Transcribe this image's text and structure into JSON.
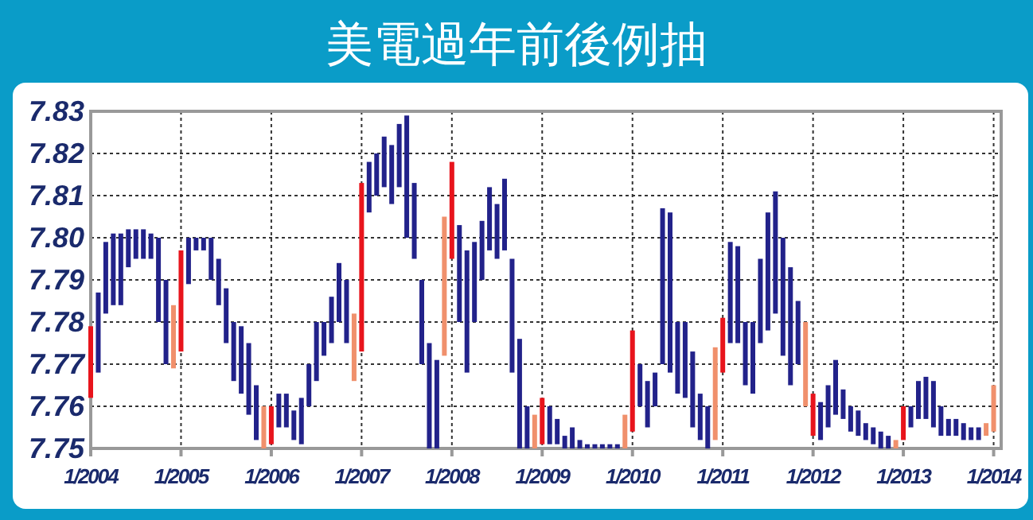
{
  "chart_data": {
    "type": "bar",
    "title": "美電過年前後例抽",
    "x": [
      "2004-01",
      "2004-02",
      "2004-03",
      "2004-04",
      "2004-05",
      "2004-06",
      "2004-07",
      "2004-08",
      "2004-09",
      "2004-10",
      "2004-11",
      "2004-12",
      "2005-01",
      "2005-02",
      "2005-03",
      "2005-04",
      "2005-05",
      "2005-06",
      "2005-07",
      "2005-08",
      "2005-09",
      "2005-10",
      "2005-11",
      "2005-12",
      "2006-01",
      "2006-02",
      "2006-03",
      "2006-04",
      "2006-05",
      "2006-06",
      "2006-07",
      "2006-08",
      "2006-09",
      "2006-10",
      "2006-11",
      "2006-12",
      "2007-01",
      "2007-02",
      "2007-03",
      "2007-04",
      "2007-05",
      "2007-06",
      "2007-07",
      "2007-08",
      "2007-09",
      "2007-10",
      "2007-11",
      "2007-12",
      "2008-01",
      "2008-02",
      "2008-03",
      "2008-04",
      "2008-05",
      "2008-06",
      "2008-07",
      "2008-08",
      "2008-09",
      "2008-10",
      "2008-11",
      "2008-12",
      "2009-01",
      "2009-02",
      "2009-03",
      "2009-04",
      "2009-05",
      "2009-06",
      "2009-07",
      "2009-08",
      "2009-09",
      "2009-10",
      "2009-11",
      "2009-12",
      "2010-01",
      "2010-02",
      "2010-03",
      "2010-04",
      "2010-05",
      "2010-06",
      "2010-07",
      "2010-08",
      "2010-09",
      "2010-10",
      "2010-11",
      "2010-12",
      "2011-01",
      "2011-02",
      "2011-03",
      "2011-04",
      "2011-05",
      "2011-06",
      "2011-07",
      "2011-08",
      "2011-09",
      "2011-10",
      "2011-11",
      "2011-12",
      "2012-01",
      "2012-02",
      "2012-03",
      "2012-04",
      "2012-05",
      "2012-06",
      "2012-07",
      "2012-08",
      "2012-09",
      "2012-10",
      "2012-11",
      "2012-12",
      "2013-01",
      "2013-02",
      "2013-03",
      "2013-04",
      "2013-05",
      "2013-06",
      "2013-07",
      "2013-08",
      "2013-09",
      "2013-10",
      "2013-11",
      "2013-12",
      "2014-01"
    ],
    "base": [
      7.762,
      7.768,
      7.782,
      7.784,
      7.784,
      7.793,
      7.795,
      7.795,
      7.795,
      7.78,
      7.77,
      7.769,
      7.773,
      7.789,
      7.797,
      7.797,
      7.79,
      7.784,
      7.775,
      7.766,
      7.763,
      7.758,
      7.752,
      7.75,
      7.751,
      7.755,
      7.755,
      7.752,
      7.751,
      7.76,
      7.766,
      7.772,
      7.775,
      7.78,
      7.775,
      7.766,
      7.773,
      7.806,
      7.81,
      7.812,
      7.808,
      7.812,
      7.8,
      7.795,
      7.77,
      7.75,
      7.75,
      7.772,
      7.795,
      7.78,
      7.768,
      7.78,
      7.79,
      7.797,
      7.795,
      7.797,
      7.768,
      7.75,
      7.75,
      7.75,
      7.751,
      7.751,
      7.751,
      7.75,
      7.75,
      7.75,
      7.75,
      7.75,
      7.75,
      7.75,
      7.75,
      7.75,
      7.754,
      7.76,
      7.755,
      7.76,
      7.77,
      7.768,
      7.763,
      7.762,
      7.755,
      7.752,
      7.75,
      7.752,
      7.768,
      7.775,
      7.775,
      7.765,
      7.763,
      7.775,
      7.778,
      7.782,
      7.772,
      7.765,
      7.77,
      7.76,
      7.753,
      7.752,
      7.755,
      7.758,
      7.757,
      7.754,
      7.753,
      7.752,
      7.751,
      7.75,
      7.75,
      7.75,
      7.752,
      7.755,
      7.757,
      7.757,
      7.755,
      7.753,
      7.753,
      7.753,
      7.752,
      7.752,
      7.752,
      7.753,
      7.754
    ],
    "values": [
      0.017,
      0.019,
      0.017,
      0.017,
      0.017,
      0.009,
      0.007,
      0.007,
      0.006,
      0.02,
      0.02,
      0.015,
      0.024,
      0.011,
      0.003,
      0.003,
      0.01,
      0.011,
      0.013,
      0.014,
      0.016,
      0.017,
      0.013,
      0.01,
      0.009,
      0.008,
      0.008,
      0.007,
      0.011,
      0.01,
      0.014,
      0.008,
      0.011,
      0.014,
      0.015,
      0.016,
      0.04,
      0.012,
      0.01,
      0.012,
      0.014,
      0.015,
      0.029,
      0.018,
      0.02,
      0.025,
      0.021,
      0.033,
      0.023,
      0.023,
      0.029,
      0.019,
      0.014,
      0.015,
      0.013,
      0.017,
      0.027,
      0.026,
      0.01,
      0.008,
      0.011,
      0.009,
      0.006,
      0.003,
      0.005,
      0.002,
      0.001,
      0.001,
      0.001,
      0.001,
      0.001,
      0.008,
      0.024,
      0.01,
      0.011,
      0.008,
      0.037,
      0.038,
      0.017,
      0.018,
      0.018,
      0.011,
      0.01,
      0.022,
      0.013,
      0.024,
      0.023,
      0.015,
      0.017,
      0.02,
      0.028,
      0.029,
      0.028,
      0.028,
      0.015,
      0.02,
      0.01,
      0.009,
      0.01,
      0.013,
      0.007,
      0.006,
      0.006,
      0.004,
      0.004,
      0.004,
      0.003,
      0.002,
      0.008,
      0.005,
      0.009,
      0.01,
      0.011,
      0.007,
      0.004,
      0.004,
      0.004,
      0.003,
      0.003,
      0.003,
      0.011
    ],
    "colors": [
      "#e8141c",
      "#22228a",
      "#22228a",
      "#22228a",
      "#22228a",
      "#22228a",
      "#22228a",
      "#22228a",
      "#22228a",
      "#22228a",
      "#22228a",
      "#f0906c",
      "#e8141c",
      "#22228a",
      "#22228a",
      "#22228a",
      "#22228a",
      "#22228a",
      "#22228a",
      "#22228a",
      "#22228a",
      "#22228a",
      "#22228a",
      "#f0906c",
      "#e8141c",
      "#22228a",
      "#22228a",
      "#22228a",
      "#22228a",
      "#22228a",
      "#22228a",
      "#22228a",
      "#22228a",
      "#22228a",
      "#22228a",
      "#f0906c",
      "#e8141c",
      "#22228a",
      "#22228a",
      "#22228a",
      "#22228a",
      "#22228a",
      "#22228a",
      "#22228a",
      "#22228a",
      "#22228a",
      "#22228a",
      "#f0906c",
      "#e8141c",
      "#22228a",
      "#22228a",
      "#22228a",
      "#22228a",
      "#22228a",
      "#22228a",
      "#22228a",
      "#22228a",
      "#22228a",
      "#22228a",
      "#f0906c",
      "#e8141c",
      "#22228a",
      "#22228a",
      "#22228a",
      "#22228a",
      "#22228a",
      "#22228a",
      "#22228a",
      "#22228a",
      "#22228a",
      "#22228a",
      "#f0906c",
      "#e8141c",
      "#22228a",
      "#22228a",
      "#22228a",
      "#22228a",
      "#22228a",
      "#22228a",
      "#22228a",
      "#22228a",
      "#22228a",
      "#22228a",
      "#f0906c",
      "#e8141c",
      "#22228a",
      "#22228a",
      "#22228a",
      "#22228a",
      "#22228a",
      "#22228a",
      "#22228a",
      "#22228a",
      "#22228a",
      "#22228a",
      "#f0906c",
      "#e8141c",
      "#22228a",
      "#22228a",
      "#22228a",
      "#22228a",
      "#22228a",
      "#22228a",
      "#22228a",
      "#22228a",
      "#22228a",
      "#22228a",
      "#f0906c",
      "#e8141c",
      "#22228a",
      "#22228a",
      "#22228a",
      "#22228a",
      "#22228a",
      "#22228a",
      "#22228a",
      "#22228a",
      "#22228a",
      "#22228a",
      "#f0906c",
      "#f0906c"
    ],
    "ylim": [
      7.75,
      7.83
    ],
    "yticks": [
      7.75,
      7.76,
      7.77,
      7.78,
      7.79,
      {
        "value": 7.8,
        "label": "7.80"
      },
      7.81,
      7.82,
      7.83
    ],
    "xlim": [
      "2004-01",
      "2014-02"
    ],
    "xticks": [
      {
        "value": "2004-01",
        "label": "1/2004"
      },
      {
        "value": "2005-01",
        "label": "1/2005"
      },
      {
        "value": "2006-01",
        "label": "1/2006"
      },
      {
        "value": "2007-01",
        "label": "1/2007"
      },
      {
        "value": "2008-01",
        "label": "1/2008"
      },
      {
        "value": "2009-01",
        "label": "1/2009"
      },
      {
        "value": "2010-01",
        "label": "1/2010"
      },
      {
        "value": "2011-01",
        "label": "1/2011"
      },
      {
        "value": "2012-01",
        "label": "1/2012"
      },
      {
        "value": "2013-01",
        "label": "1/2013"
      },
      {
        "value": "2014-01",
        "label": "1/2014"
      }
    ],
    "grid": true
  }
}
